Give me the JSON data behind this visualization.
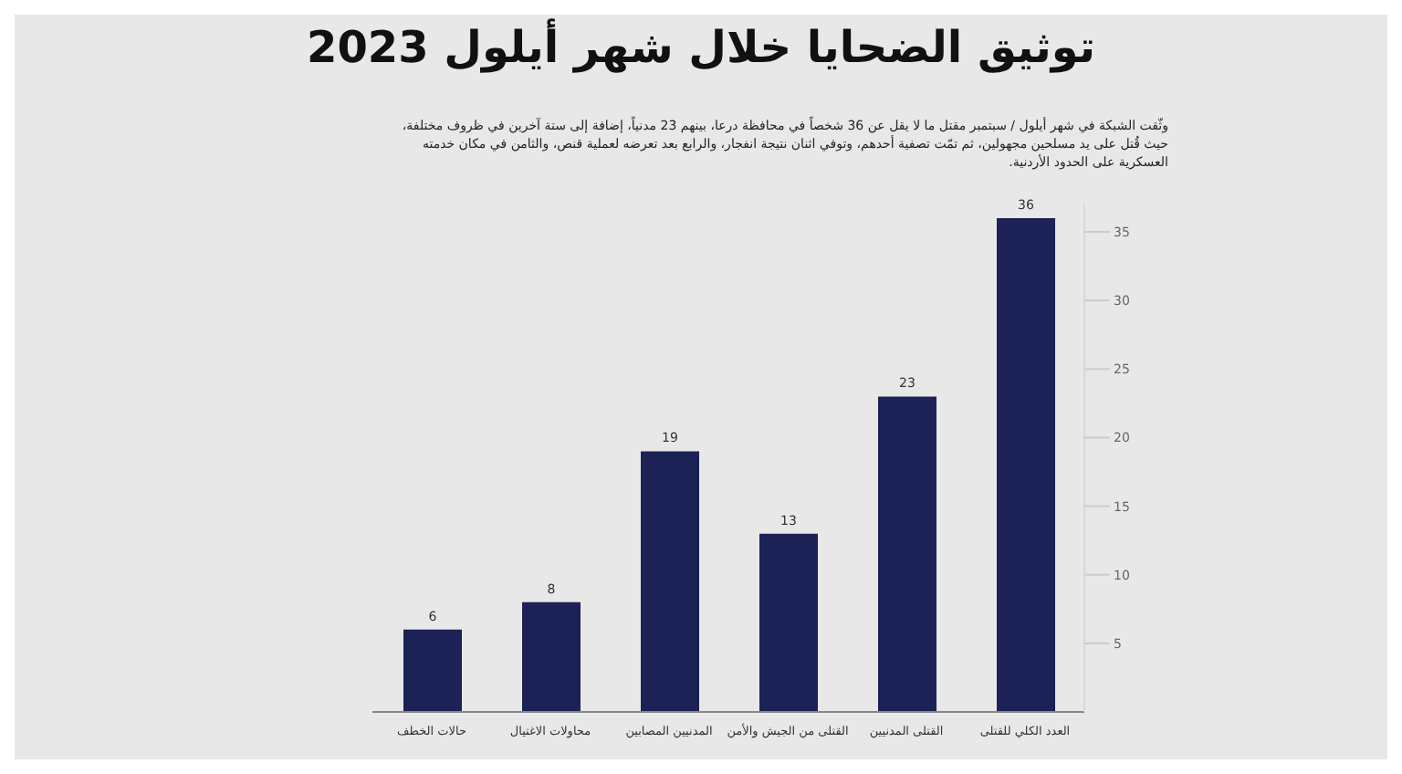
{
  "chart_data": {
    "type": "bar",
    "title": "توثيق الضحايا خلال شهر أيلول 2023",
    "subtitle": "وثّقت الشبكة في شهر أيلول / سبتمبر مقتل ما لا يقل عن 36 شخصاً في محافظة درعا، بينهم 23 مدنياً، إضافة إلى ستة آخرين في ظروف مختلفة، حيث قُتل على يد مسلحين مجهولين، ثم تمّت تصفية أحدهم، وتوفي اثنان نتيجة انفجار، والرابع بعد تعرضه لعملية قنص، والثامن في مكان خدمته العسكرية على الحدود الأردنية.",
    "categories": [
      "حالات الخطف",
      "محاولات الاغتيال",
      "المدنيين المصابين",
      "القتلى من الجيش والأمن",
      "القتلى المدنيين",
      "العدد الكلي للقتلى"
    ],
    "values": [
      6,
      8,
      19,
      13,
      23,
      36
    ],
    "color": "#1c2156",
    "data_labels": true,
    "ylim": [
      0,
      37
    ],
    "yticks": [
      5,
      10,
      15,
      20,
      25,
      30,
      35
    ]
  }
}
